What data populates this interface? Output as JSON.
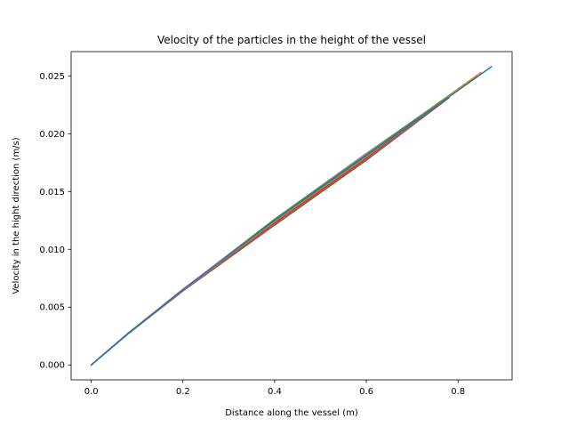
{
  "chart_data": {
    "type": "line",
    "title": "Velocity of the particles in the height of the vessel",
    "xlabel": "Distance along the vessel (m)",
    "ylabel": "Velocity in the hight direction (m/s)",
    "xlim": [
      -0.044,
      0.918
    ],
    "ylim": [
      -0.00129,
      0.0271
    ],
    "xticks": [
      0.0,
      0.2,
      0.4,
      0.6,
      0.8
    ],
    "xtick_labels": [
      "0.0",
      "0.2",
      "0.4",
      "0.6",
      "0.8"
    ],
    "yticks": [
      0.0,
      0.005,
      0.01,
      0.015,
      0.02,
      0.025
    ],
    "ytick_labels": [
      "0.000",
      "0.005",
      "0.010",
      "0.015",
      "0.020",
      "0.025"
    ],
    "grid": false,
    "legend": false,
    "series": [
      {
        "color": "#1f77b4",
        "x": [
          0.0,
          0.08,
          0.2,
          0.4,
          0.6,
          0.873
        ],
        "y": [
          0.0,
          0.00272,
          0.0065,
          0.0125,
          0.0181,
          0.0258
        ]
      },
      {
        "color": "#ff7f0e",
        "x": [
          0.0,
          0.08,
          0.2,
          0.4,
          0.6,
          0.85
        ],
        "y": [
          0.0,
          0.00271,
          0.00648,
          0.0124,
          0.018,
          0.0253
        ]
      },
      {
        "color": "#2ca02c",
        "x": [
          0.0,
          0.08,
          0.2,
          0.4,
          0.6,
          0.84
        ],
        "y": [
          0.0,
          0.0027,
          0.00646,
          0.0126,
          0.0182,
          0.025
        ]
      },
      {
        "color": "#d62728",
        "x": [
          0.0,
          0.08,
          0.2,
          0.4,
          0.6,
          0.82
        ],
        "y": [
          0.0,
          0.00273,
          0.00652,
          0.0123,
          0.0179,
          0.0244
        ]
      },
      {
        "color": "#9467bd",
        "x": [
          0.0,
          0.08,
          0.2,
          0.4,
          0.6,
          0.8
        ],
        "y": [
          0.0,
          0.00269,
          0.00645,
          0.0124,
          0.0181,
          0.0238
        ]
      },
      {
        "color": "#8c564b",
        "x": [
          0.0,
          0.08,
          0.2,
          0.4,
          0.6,
          0.78
        ],
        "y": [
          0.0,
          0.00268,
          0.0064,
          0.0121,
          0.0177,
          0.0231
        ]
      },
      {
        "color": "#e377c2",
        "x": [
          0.0,
          0.08,
          0.2,
          0.4,
          0.6,
          0.76
        ],
        "y": [
          0.0,
          0.00272,
          0.00655,
          0.0126,
          0.0183,
          0.0227
        ]
      },
      {
        "color": "#7f7f7f",
        "x": [
          0.0,
          0.08,
          0.2,
          0.4,
          0.6,
          0.74
        ],
        "y": [
          0.0,
          0.00268,
          0.00642,
          0.0122,
          0.0178,
          0.0221
        ]
      },
      {
        "color": "#bcbd22",
        "x": [
          0.0,
          0.08,
          0.2,
          0.4,
          0.6,
          0.72
        ],
        "y": [
          0.0,
          0.00271,
          0.00649,
          0.0125,
          0.0182,
          0.0215
        ]
      },
      {
        "color": "#17becf",
        "x": [
          0.0,
          0.08,
          0.2,
          0.4,
          0.6,
          0.7
        ],
        "y": [
          0.0,
          0.00272,
          0.00651,
          0.0126,
          0.0183,
          0.021
        ]
      }
    ]
  }
}
